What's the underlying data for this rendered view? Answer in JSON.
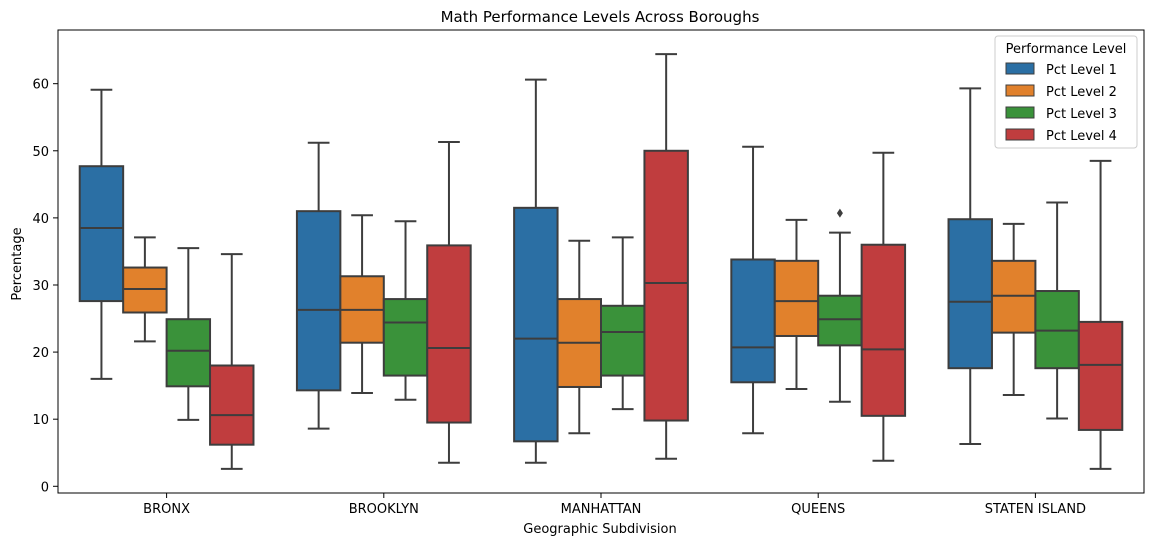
{
  "chart_data": {
    "type": "boxplot",
    "title": "Math Performance Levels Across Boroughs",
    "xlabel": "Geographic Subdivision",
    "ylabel": "Percentage",
    "ylim": [
      -1,
      68
    ],
    "yticks": [
      0,
      10,
      20,
      30,
      40,
      50,
      60
    ],
    "categories": [
      "BRONX",
      "BROOKLYN",
      "MANHATTAN",
      "QUEENS",
      "STATEN ISLAND"
    ],
    "legend": {
      "title": "Performance Level",
      "placement": "top-right"
    },
    "series": [
      {
        "name": "Pct Level 1",
        "color": "#2b6fa4",
        "boxes": [
          {
            "whislo": 16.0,
            "q1": 27.6,
            "med": 38.5,
            "q3": 47.7,
            "whishi": 59.1,
            "fliers": []
          },
          {
            "whislo": 8.6,
            "q1": 14.3,
            "med": 26.3,
            "q3": 41.0,
            "whishi": 51.2,
            "fliers": []
          },
          {
            "whislo": 3.5,
            "q1": 6.7,
            "med": 22.0,
            "q3": 41.5,
            "whishi": 60.6,
            "fliers": []
          },
          {
            "whislo": 7.9,
            "q1": 15.5,
            "med": 20.7,
            "q3": 33.8,
            "whishi": 50.6,
            "fliers": []
          },
          {
            "whislo": 6.3,
            "q1": 17.6,
            "med": 27.5,
            "q3": 39.8,
            "whishi": 59.3,
            "fliers": []
          }
        ]
      },
      {
        "name": "Pct Level 2",
        "color": "#e1812c",
        "boxes": [
          {
            "whislo": 21.6,
            "q1": 25.9,
            "med": 29.4,
            "q3": 32.6,
            "whishi": 37.1,
            "fliers": []
          },
          {
            "whislo": 13.9,
            "q1": 21.4,
            "med": 26.3,
            "q3": 31.3,
            "whishi": 40.4,
            "fliers": []
          },
          {
            "whislo": 7.9,
            "q1": 14.8,
            "med": 21.4,
            "q3": 27.9,
            "whishi": 36.6,
            "fliers": []
          },
          {
            "whislo": 14.5,
            "q1": 22.4,
            "med": 27.6,
            "q3": 33.6,
            "whishi": 39.7,
            "fliers": []
          },
          {
            "whislo": 13.6,
            "q1": 22.9,
            "med": 28.4,
            "q3": 33.6,
            "whishi": 39.1,
            "fliers": []
          }
        ]
      },
      {
        "name": "Pct Level 3",
        "color": "#3a923a",
        "boxes": [
          {
            "whislo": 9.9,
            "q1": 14.9,
            "med": 20.2,
            "q3": 24.9,
            "whishi": 35.5,
            "fliers": []
          },
          {
            "whislo": 12.9,
            "q1": 16.5,
            "med": 24.4,
            "q3": 27.9,
            "whishi": 39.5,
            "fliers": []
          },
          {
            "whislo": 11.5,
            "q1": 16.5,
            "med": 23.0,
            "q3": 26.9,
            "whishi": 37.1,
            "fliers": []
          },
          {
            "whislo": 12.6,
            "q1": 21.0,
            "med": 24.9,
            "q3": 28.4,
            "whishi": 37.8,
            "fliers": [
              40.7
            ]
          },
          {
            "whislo": 10.1,
            "q1": 17.6,
            "med": 23.2,
            "q3": 29.1,
            "whishi": 42.3,
            "fliers": []
          }
        ]
      },
      {
        "name": "Pct Level 4",
        "color": "#c03d3e",
        "boxes": [
          {
            "whislo": 2.6,
            "q1": 6.2,
            "med": 10.6,
            "q3": 18.0,
            "whishi": 34.6,
            "fliers": []
          },
          {
            "whislo": 3.5,
            "q1": 9.5,
            "med": 20.6,
            "q3": 35.9,
            "whishi": 51.3,
            "fliers": []
          },
          {
            "whislo": 4.1,
            "q1": 9.8,
            "med": 30.3,
            "q3": 50.0,
            "whishi": 64.4,
            "fliers": []
          },
          {
            "whislo": 3.8,
            "q1": 10.5,
            "med": 20.4,
            "q3": 36.0,
            "whishi": 49.7,
            "fliers": []
          },
          {
            "whislo": 2.6,
            "q1": 8.4,
            "med": 18.1,
            "q3": 24.5,
            "whishi": 48.5,
            "fliers": []
          }
        ]
      }
    ]
  }
}
